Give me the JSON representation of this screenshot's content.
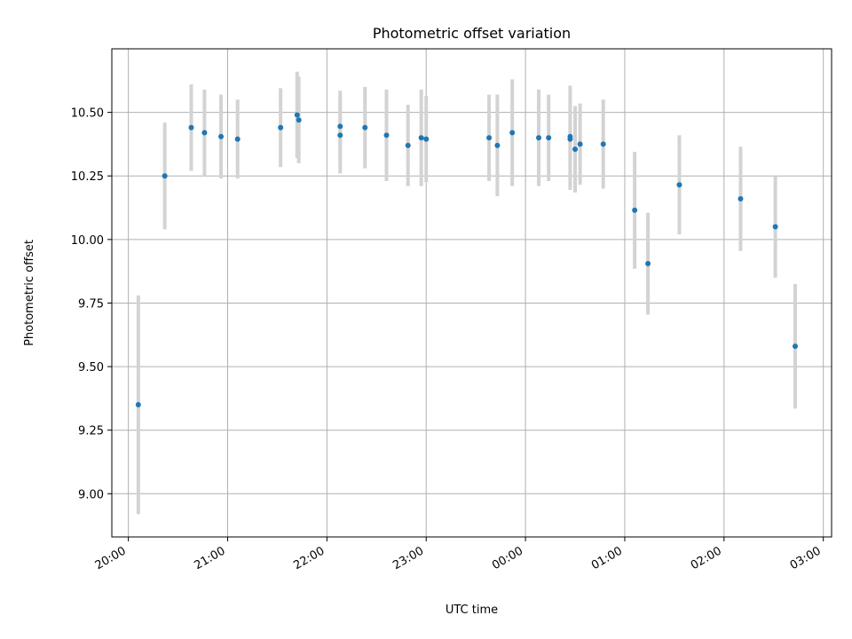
{
  "chart_data": {
    "type": "scatter",
    "title": "Photometric offset variation",
    "xlabel": "UTC time",
    "ylabel": "Photometric offset",
    "grid": true,
    "xlim": [
      "19:50",
      "03:05"
    ],
    "ylim": [
      8.83,
      10.75
    ],
    "x_ticks": [
      "20:00",
      "21:00",
      "22:00",
      "23:00",
      "00:00",
      "01:00",
      "02:00",
      "03:00"
    ],
    "y_ticks": [
      "9.00",
      "9.25",
      "9.50",
      "9.75",
      "10.00",
      "10.25",
      "10.50"
    ],
    "marker_color": "#1f77b4",
    "errorbar_color": "#d3d3d3",
    "points": [
      {
        "t": "20:06",
        "y": 9.35,
        "err": 0.43
      },
      {
        "t": "20:22",
        "y": 10.25,
        "err": 0.21
      },
      {
        "t": "20:38",
        "y": 10.44,
        "err": 0.17
      },
      {
        "t": "20:46",
        "y": 10.42,
        "err": 0.17
      },
      {
        "t": "20:56",
        "y": 10.405,
        "err": 0.165
      },
      {
        "t": "21:06",
        "y": 10.395,
        "err": 0.155
      },
      {
        "t": "21:32",
        "y": 10.44,
        "err": 0.155
      },
      {
        "t": "21:42",
        "y": 10.49,
        "err": 0.17
      },
      {
        "t": "21:43",
        "y": 10.47,
        "err": 0.17
      },
      {
        "t": "22:08",
        "y": 10.41,
        "err": 0.15
      },
      {
        "t": "22:08",
        "y": 10.445,
        "err": 0.14
      },
      {
        "t": "22:23",
        "y": 10.44,
        "err": 0.16
      },
      {
        "t": "22:36",
        "y": 10.41,
        "err": 0.18
      },
      {
        "t": "22:49",
        "y": 10.37,
        "err": 0.16
      },
      {
        "t": "22:57",
        "y": 10.4,
        "err": 0.19
      },
      {
        "t": "23:00",
        "y": 10.395,
        "err": 0.17
      },
      {
        "t": "23:38",
        "y": 10.4,
        "err": 0.17
      },
      {
        "t": "23:43",
        "y": 10.37,
        "err": 0.2
      },
      {
        "t": "23:52",
        "y": 10.42,
        "err": 0.21
      },
      {
        "t": "00:08",
        "y": 10.4,
        "err": 0.19
      },
      {
        "t": "00:14",
        "y": 10.4,
        "err": 0.17
      },
      {
        "t": "00:27",
        "y": 10.395,
        "err": 0.2
      },
      {
        "t": "00:27",
        "y": 10.405,
        "err": 0.2
      },
      {
        "t": "00:30",
        "y": 10.355,
        "err": 0.17
      },
      {
        "t": "00:33",
        "y": 10.375,
        "err": 0.16
      },
      {
        "t": "00:47",
        "y": 10.375,
        "err": 0.175
      },
      {
        "t": "01:06",
        "y": 10.115,
        "err": 0.23
      },
      {
        "t": "01:14",
        "y": 9.905,
        "err": 0.2
      },
      {
        "t": "01:33",
        "y": 10.215,
        "err": 0.195
      },
      {
        "t": "02:10",
        "y": 10.16,
        "err": 0.205
      },
      {
        "t": "02:31",
        "y": 10.05,
        "err": 0.2
      },
      {
        "t": "02:43",
        "y": 9.58,
        "err": 0.245
      }
    ]
  }
}
